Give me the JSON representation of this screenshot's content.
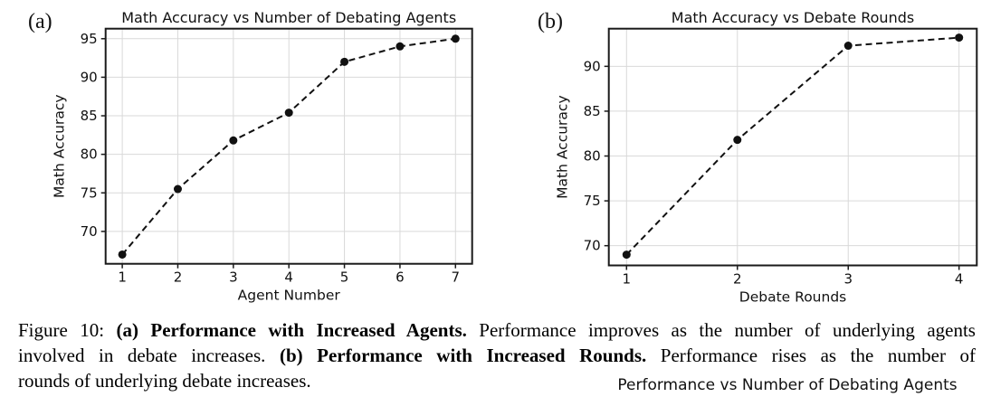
{
  "colors": {
    "frame": "#1a1a1a",
    "grid": "#d9d9d9",
    "series": "#111111",
    "text": "#111111"
  },
  "chart_data": [
    {
      "id": "agents",
      "type": "line",
      "panel_label": "(a)",
      "title": "Math Accuracy vs Number of Debating Agents",
      "xlabel": "Agent Number",
      "ylabel": "Math Accuracy",
      "x": [
        1,
        2,
        3,
        4,
        5,
        6,
        7
      ],
      "y": [
        67.0,
        75.5,
        81.8,
        85.4,
        92.0,
        94.0,
        95.0
      ],
      "xticks": [
        1,
        2,
        3,
        4,
        5,
        6,
        7
      ],
      "xtick_labels": [
        "1",
        "2",
        "3",
        "4",
        "5",
        "6",
        "7"
      ],
      "yticks": [
        70,
        75,
        80,
        85,
        90,
        95
      ],
      "ytick_labels": [
        "70",
        "75",
        "80",
        "85",
        "90",
        "95"
      ],
      "xlim": [
        0.7,
        7.3
      ],
      "ylim": [
        65.8,
        96.3
      ],
      "grid": true,
      "line_style": "dashed",
      "marker": "circle",
      "legend": "none"
    },
    {
      "id": "rounds",
      "type": "line",
      "panel_label": "(b)",
      "title": "Math Accuracy vs Debate Rounds",
      "xlabel": "Debate Rounds",
      "ylabel": "Math Accuracy",
      "x": [
        1,
        2,
        3,
        4
      ],
      "y": [
        69.0,
        81.8,
        92.3,
        93.2
      ],
      "xticks": [
        1,
        2,
        3,
        4
      ],
      "xtick_labels": [
        "1",
        "2",
        "3",
        "4"
      ],
      "yticks": [
        70,
        75,
        80,
        85,
        90
      ],
      "ytick_labels": [
        "70",
        "75",
        "80",
        "85",
        "90"
      ],
      "xlim": [
        0.84,
        4.16
      ],
      "ylim": [
        67.8,
        94.2
      ],
      "grid": true,
      "line_style": "dashed",
      "marker": "circle",
      "legend": "none"
    }
  ],
  "caption": {
    "lines": [
      {
        "justify": true,
        "runs": [
          {
            "text": "Figure 10: ",
            "bold": false
          },
          {
            "text": "(a) Performance with Increased Agents.",
            "bold": true
          },
          {
            "text": " Performance improves as the number of underlying agents",
            "bold": false
          }
        ]
      },
      {
        "justify": true,
        "runs": [
          {
            "text": "involved in debate increases. ",
            "bold": false
          },
          {
            "text": "(b) Performance with Increased Rounds.",
            "bold": true
          },
          {
            "text": " Performance rises as the number of",
            "bold": false
          }
        ]
      },
      {
        "justify": false,
        "runs": [
          {
            "text": "rounds of underlying debate increases.",
            "bold": false
          }
        ]
      }
    ]
  },
  "next_figure_title": "Performance vs Number of Debating Agents"
}
